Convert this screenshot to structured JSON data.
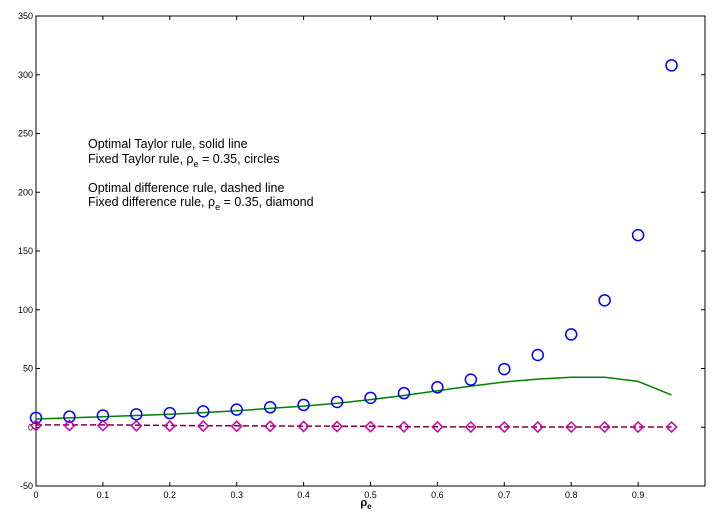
{
  "chart_data": {
    "type": "line",
    "title": "",
    "xlabel": "ρ",
    "xlabel_subscript": "e",
    "ylabel": "",
    "xlim": [
      0,
      1
    ],
    "ylim": [
      -50,
      350
    ],
    "xticks": [
      "0",
      "0.1",
      "0.2",
      "0.3",
      "0.4",
      "0.5",
      "0.6",
      "0.7",
      "0.8",
      "0.9"
    ],
    "xtick_values": [
      0,
      0.1,
      0.2,
      0.3,
      0.4,
      0.5,
      0.6,
      0.7,
      0.8,
      0.9
    ],
    "yticks": [
      "-50",
      "0",
      "50",
      "100",
      "150",
      "200",
      "250",
      "300",
      "350"
    ],
    "ytick_values": [
      -50,
      0,
      50,
      100,
      150,
      200,
      250,
      300,
      350
    ],
    "grid": false,
    "x": [
      0,
      0.05,
      0.1,
      0.15,
      0.2,
      0.25,
      0.3,
      0.35,
      0.4,
      0.45,
      0.5,
      0.55,
      0.6,
      0.65,
      0.7,
      0.75,
      0.8,
      0.85,
      0.9,
      0.95
    ],
    "series": [
      {
        "style": "solid-line",
        "color": "#008000",
        "values": [
          7,
          8,
          9,
          10,
          11,
          12.5,
          14,
          16,
          18,
          20.5,
          23.5,
          27,
          31,
          35,
          38.5,
          41,
          42.5,
          42.5,
          39,
          27.5
        ]
      },
      {
        "style": "circles",
        "color": "#0000ff",
        "values": [
          8,
          9,
          10,
          11,
          12,
          13.5,
          15,
          17,
          19,
          21.5,
          25,
          29,
          34,
          40.5,
          49.5,
          61.5,
          79,
          108,
          163.5,
          308
        ]
      },
      {
        "style": "dashed-line",
        "color": "#800040",
        "values": [
          2,
          2,
          2,
          1.8,
          1.5,
          1.3,
          1.2,
          1.1,
          1,
          0.9,
          0.8,
          0.5,
          0.4,
          0.3,
          0.3,
          0.2,
          0.2,
          0.2,
          0.2,
          0.2
        ]
      },
      {
        "style": "diamonds",
        "color": "#cc00aa",
        "values": [
          1.5,
          1.5,
          1.5,
          1.2,
          1,
          1,
          0.8,
          0.8,
          0.7,
          0.6,
          0.5,
          0.3,
          0.3,
          0.2,
          0.2,
          0.2,
          0.2,
          0.2,
          0.2,
          0.2
        ]
      }
    ],
    "annotations": {
      "line1": "Optimal Taylor rule, solid line",
      "line2_prefix": "Fixed Taylor rule, ρ",
      "line2_sub": "e",
      "line2_suffix": " = 0.35, circles",
      "line3": "Optimal difference rule, dashed line",
      "line4_prefix": "Fixed difference rule, ρ",
      "line4_sub": "e",
      "line4_suffix": " = 0.35, diamond"
    }
  }
}
